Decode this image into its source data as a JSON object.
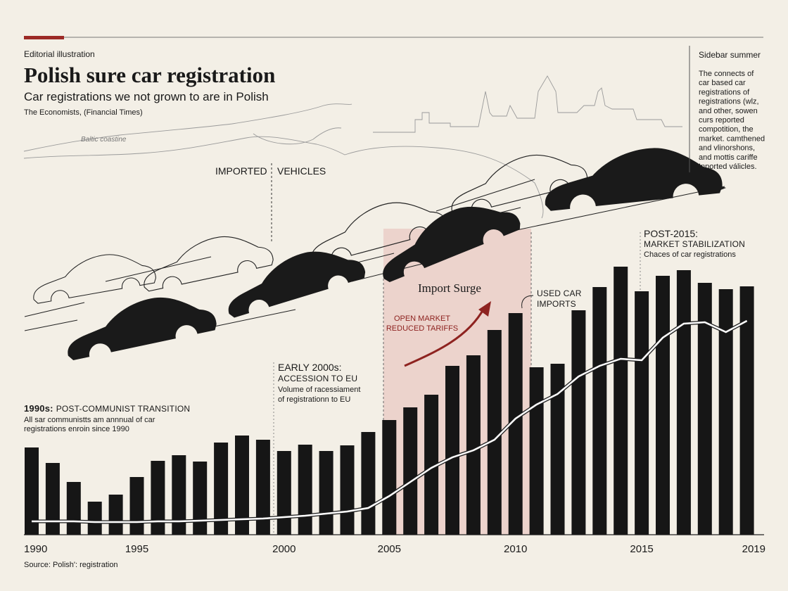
{
  "chart_data": {
    "type": "bar",
    "kicker": "Editorial illustration",
    "title": "Polish sure car registration",
    "subtitle": "Car registrations we not grown to are in Polish",
    "credit": "The Economists, (Financial Times)",
    "source": "Source: Polish': registration",
    "map_label": "Baltic coastine",
    "flow_labels": [
      "IMPORTED",
      "VEHICLES"
    ],
    "sidebar": {
      "title": "Sidebar summer",
      "lines": [
        "The connects of",
        "car based car",
        "registrations of",
        "registrations (wlz,",
        "and other, sowen",
        "curs reported",
        "compotition, the",
        "market. camthened",
        "and vlinorshons,",
        "and mottis cariffe",
        "Inported válicles."
      ]
    },
    "annotations": {
      "nineties": {
        "lead": "1990s:",
        "head": "POST-COMMUNIST TRANSITION",
        "lines": [
          "All sar communistts am annnual of car",
          "registrations enroin since 1990"
        ]
      },
      "early2000s": {
        "lines": [
          "EARLY 2000s:",
          "ACCESSION TO EU"
        ],
        "body": [
          "Volume of racessiament",
          "of registrationn to EU"
        ]
      },
      "surge": {
        "title": "Import Surge",
        "lines": [
          "OPEN MARKET",
          "REDUCED TARIFFS"
        ]
      },
      "used": {
        "lines": [
          "USED CAR",
          "IMPORTS"
        ]
      },
      "post2015": {
        "lines": [
          "POST-2015:",
          "MARKET STABILIZATION"
        ],
        "body": "Chaces of car registrations"
      }
    },
    "categories": [
      "1990",
      null,
      null,
      null,
      null,
      "1995",
      null,
      null,
      null,
      null,
      null,
      null,
      "2000",
      null,
      null,
      null,
      null,
      "2005",
      null,
      null,
      null,
      null,
      null,
      "2010",
      null,
      null,
      null,
      null,
      null,
      "2015",
      null,
      null,
      null,
      null,
      "2019"
    ],
    "values": [
      124,
      102,
      75,
      47,
      57,
      82,
      105,
      113,
      104,
      131,
      141,
      135,
      119,
      128,
      119,
      127,
      146,
      163,
      181,
      199,
      240,
      255,
      291,
      315,
      238,
      243,
      319,
      352,
      381,
      346,
      368,
      376,
      358,
      349,
      353
    ],
    "color": "#161616",
    "overlay": {
      "type": "line",
      "color": "#ffffff",
      "values": [
        19,
        19,
        19,
        18,
        18,
        18,
        19,
        19,
        20,
        21,
        22,
        23,
        25,
        27,
        30,
        33,
        38,
        55,
        75,
        95,
        110,
        120,
        135,
        165,
        185,
        200,
        225,
        240,
        250,
        248,
        280,
        300,
        302,
        288,
        304
      ]
    },
    "ylim": [
      0,
      400
    ],
    "highlight_color": "#ecd3cc"
  }
}
